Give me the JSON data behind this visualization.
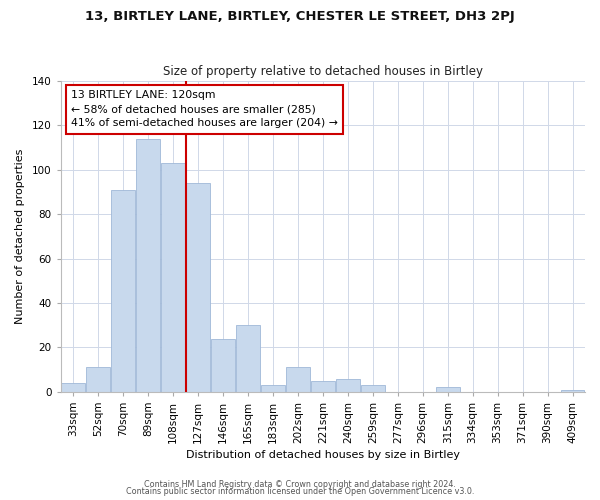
{
  "title": "13, BIRTLEY LANE, BIRTLEY, CHESTER LE STREET, DH3 2PJ",
  "subtitle": "Size of property relative to detached houses in Birtley",
  "xlabel": "Distribution of detached houses by size in Birtley",
  "ylabel": "Number of detached properties",
  "bar_labels": [
    "33sqm",
    "52sqm",
    "70sqm",
    "89sqm",
    "108sqm",
    "127sqm",
    "146sqm",
    "165sqm",
    "183sqm",
    "202sqm",
    "221sqm",
    "240sqm",
    "259sqm",
    "277sqm",
    "296sqm",
    "315sqm",
    "334sqm",
    "353sqm",
    "371sqm",
    "390sqm",
    "409sqm"
  ],
  "bar_values": [
    4,
    11,
    91,
    114,
    103,
    94,
    24,
    30,
    3,
    11,
    5,
    6,
    3,
    0,
    0,
    2,
    0,
    0,
    0,
    0,
    1
  ],
  "bar_color": "#c8d9ed",
  "bar_edge_color": "#a0b8d8",
  "marker_label": "13 BIRTLEY LANE: 120sqm",
  "annotation_line1": "← 58% of detached houses are smaller (285)",
  "annotation_line2": "41% of semi-detached houses are larger (204) →",
  "annotation_box_color": "#ffffff",
  "annotation_box_edge": "#cc0000",
  "marker_line_color": "#cc0000",
  "ylim": [
    0,
    140
  ],
  "yticks": [
    0,
    20,
    40,
    60,
    80,
    100,
    120,
    140
  ],
  "footer1": "Contains HM Land Registry data © Crown copyright and database right 2024.",
  "footer2": "Contains public sector information licensed under the Open Government Licence v3.0."
}
